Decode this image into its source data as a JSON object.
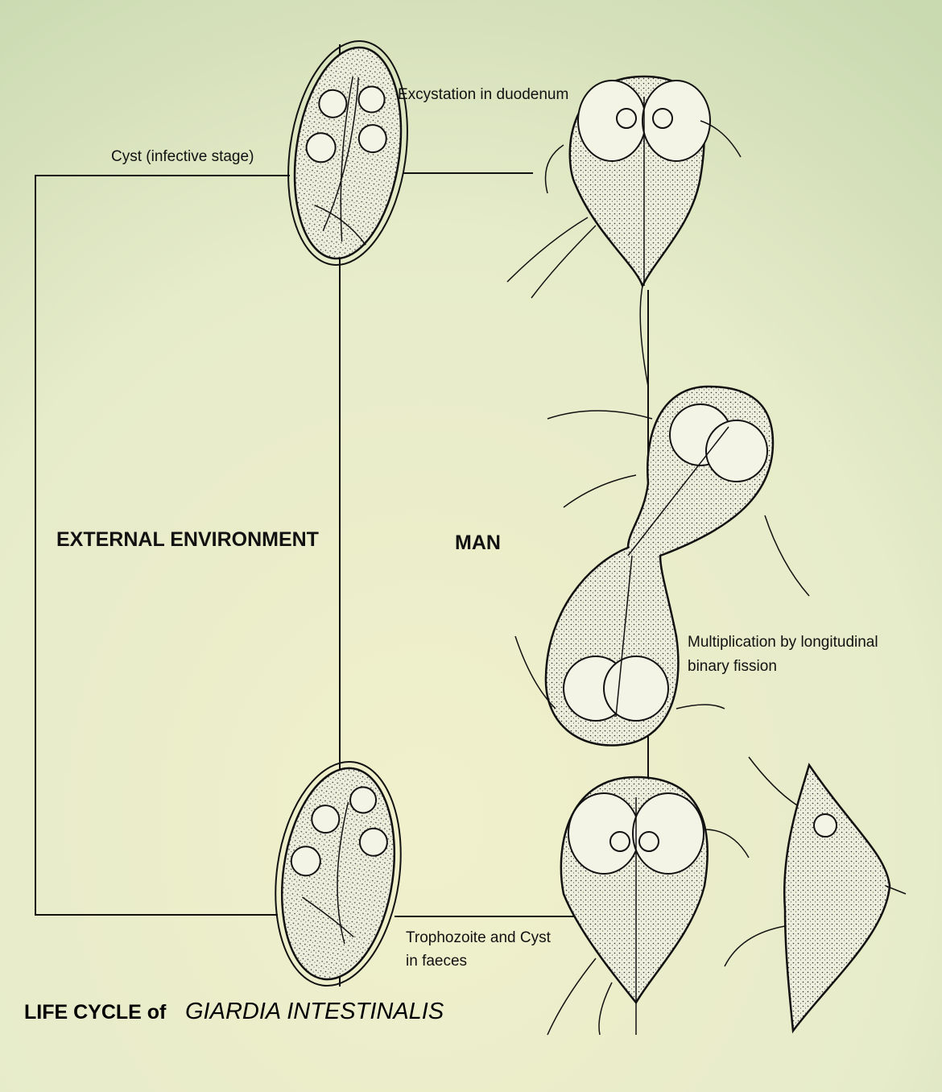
{
  "title": {
    "prefix": "LIFE CYCLE of",
    "organism": "GIARDIA INTESTINALIS"
  },
  "regions": {
    "external": "EXTERNAL ENVIRONMENT",
    "host": "MAN"
  },
  "stages": [
    {
      "lines": [
        "Cyst (infective stage)"
      ]
    },
    {
      "lines": [
        "Excystation in duodenum"
      ]
    },
    {
      "lines": [
        "Multiplication by longitudinal",
        "binary fission"
      ]
    },
    {
      "lines": [
        "Trophozoite and Cyst",
        "in faeces"
      ]
    }
  ]
}
